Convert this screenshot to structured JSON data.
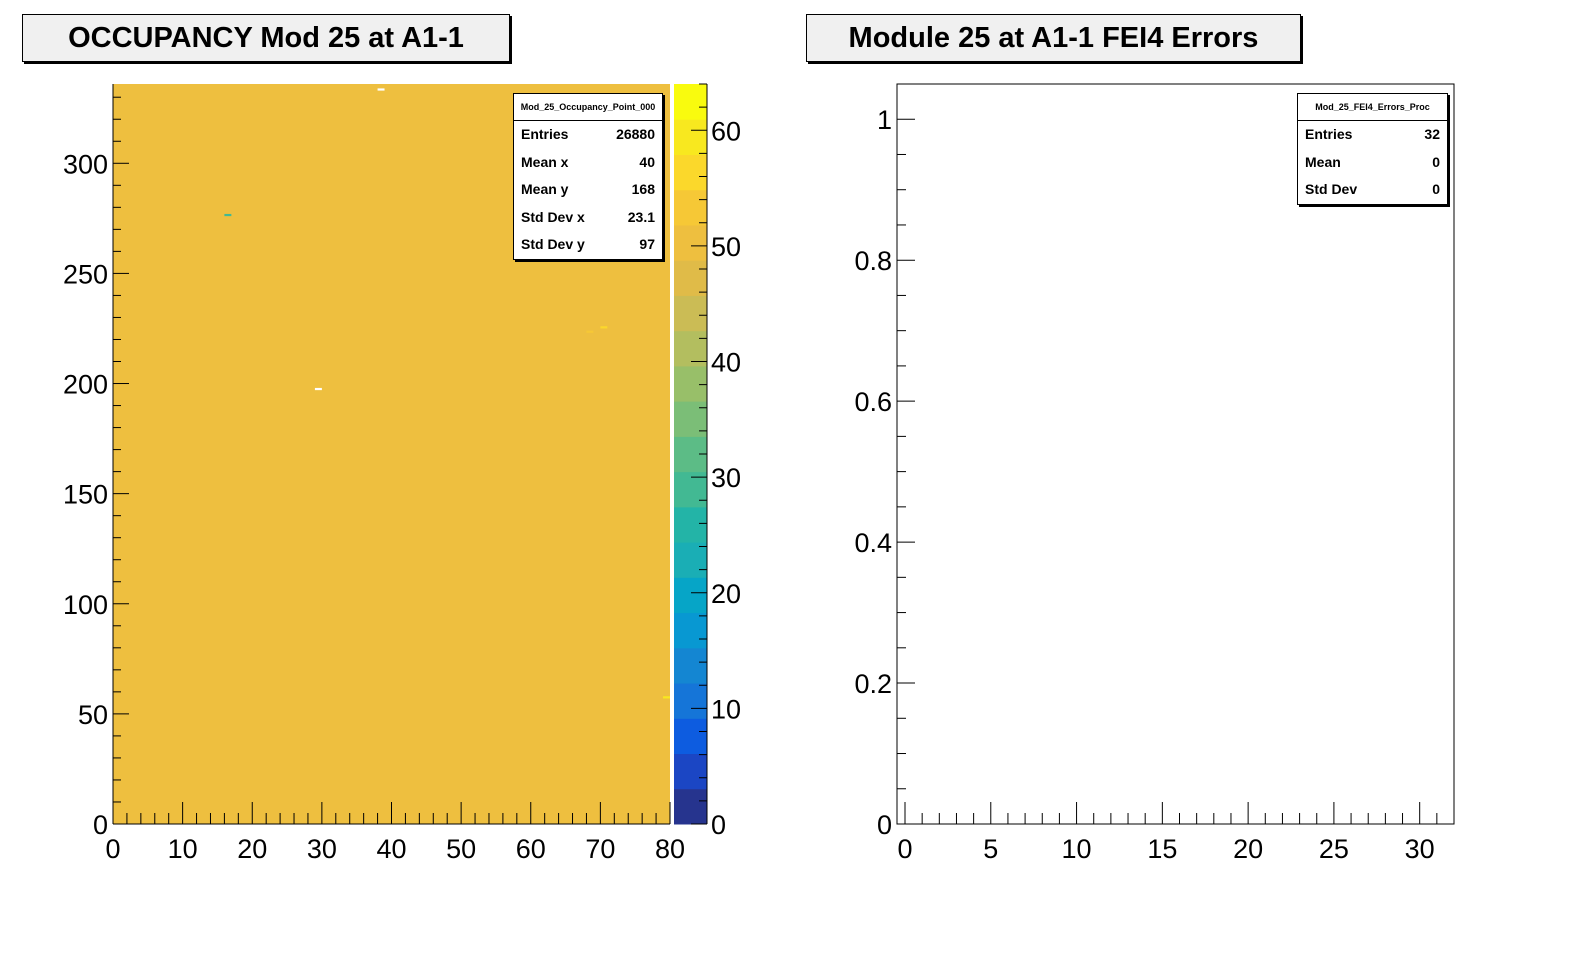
{
  "charts": {
    "left": {
      "title": "OCCUPANCY Mod 25 at A1-1",
      "stats": {
        "name": "Mod_25_Occupancy_Point_000",
        "rows": [
          {
            "label": "Entries",
            "value": "26880"
          },
          {
            "label": "Mean x",
            "value": "40"
          },
          {
            "label": "Mean y",
            "value": "168"
          },
          {
            "label": "Std Dev x",
            "value": "23.1"
          },
          {
            "label": "Std Dev y",
            "value": "97"
          }
        ]
      }
    },
    "right": {
      "title": "Module 25 at A1-1 FEI4 Errors",
      "stats": {
        "name": "Mod_25_FEI4_Errors_Proc",
        "rows": [
          {
            "label": "Entries",
            "value": "32"
          },
          {
            "label": "Mean",
            "value": "0"
          },
          {
            "label": "Std Dev",
            "value": "0"
          }
        ]
      }
    }
  },
  "chart_data": [
    {
      "type": "heatmap",
      "title": "OCCUPANCY Mod 25 at A1-1",
      "xlabel": "",
      "ylabel": "",
      "xlim": [
        0,
        80
      ],
      "ylim": [
        0,
        336
      ],
      "x_ticks": [
        "0",
        "10",
        "20",
        "30",
        "40",
        "50",
        "60",
        "70",
        "80"
      ],
      "y_ticks": [
        "0",
        "50",
        "100",
        "150",
        "200",
        "250",
        "300"
      ],
      "z_range": [
        0,
        64
      ],
      "z_ticks": [
        "0",
        "10",
        "20",
        "30",
        "40",
        "50",
        "60"
      ],
      "uniform_value": 50,
      "palette": [
        "#26348e",
        "#1b46c4",
        "#0d5ce0",
        "#1575d8",
        "#1486d2",
        "#0898d2",
        "#06a5c7",
        "#1aaeb5",
        "#23b4a7",
        "#42b993",
        "#5cbc86",
        "#7bbe77",
        "#98bf69",
        "#b3be5f",
        "#cbbc55",
        "#e0bb48",
        "#eebf3f",
        "#f6c836",
        "#fbd82b",
        "#f8e81f",
        "#f9fb0e"
      ],
      "outliers": [
        {
          "x": 38,
          "y": 333,
          "value": 64,
          "color": "#ffffff"
        },
        {
          "x": 16,
          "y": 276,
          "value": 30,
          "color": "#42b993"
        },
        {
          "x": 70,
          "y": 225,
          "value": 60,
          "color": "#fbd82b"
        },
        {
          "x": 68,
          "y": 223,
          "value": 58,
          "color": "#f6c836"
        },
        {
          "x": 29,
          "y": 197,
          "value": 64,
          "color": "#ffffff"
        },
        {
          "x": 79,
          "y": 57,
          "value": 62,
          "color": "#f8e81f"
        }
      ],
      "legend": "none"
    },
    {
      "type": "bar",
      "title": "Module 25 at A1-1 FEI4 Errors",
      "xlabel": "",
      "ylabel": "",
      "xlim": [
        0,
        32
      ],
      "ylim": [
        0,
        1.05
      ],
      "x_ticks": [
        "0",
        "5",
        "10",
        "15",
        "20",
        "25",
        "30"
      ],
      "y_ticks": [
        "0",
        "0.2",
        "0.4",
        "0.6",
        "0.8",
        "1"
      ],
      "categories": [],
      "values": [],
      "legend": "none"
    }
  ]
}
